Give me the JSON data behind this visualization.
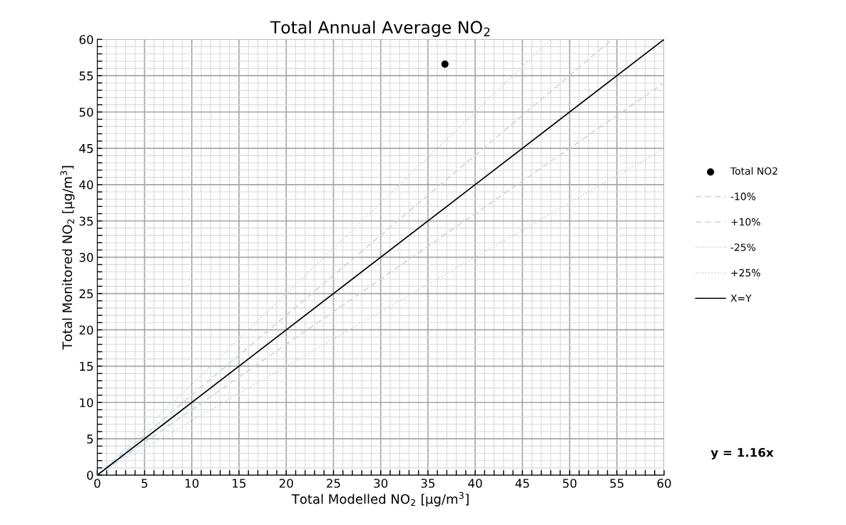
{
  "chart_data": {
    "type": "scatter",
    "title": "Total Annual Average NO$_{2}$",
    "xlabel": "Total Modelled NO$_{2}$ [µg/m$^{3}$]",
    "ylabel": "Total Monitored NO$_{2}$ [µg/m$^{3}$]",
    "xlim": [
      0,
      60
    ],
    "ylim": [
      0,
      60
    ],
    "xticks": [
      0,
      {
        "value": 1,
        "label": null
      },
      {
        "value": 2,
        "label": null
      },
      {
        "value": 3,
        "label": null
      },
      {
        "value": 4,
        "label": null
      },
      5,
      {
        "value": 6,
        "label": null
      },
      {
        "value": 7,
        "label": null
      },
      {
        "value": 8,
        "label": null
      },
      {
        "value": 9,
        "label": null
      },
      10,
      {
        "value": 11,
        "label": null
      },
      {
        "value": 12,
        "label": null
      },
      {
        "value": 13,
        "label": null
      },
      {
        "value": 14,
        "label": null
      },
      15,
      {
        "value": 16,
        "label": null
      },
      {
        "value": 17,
        "label": null
      },
      {
        "value": 18,
        "label": null
      },
      {
        "value": 19,
        "label": null
      },
      20,
      {
        "value": 21,
        "label": null
      },
      {
        "value": 22,
        "label": null
      },
      {
        "value": 23,
        "label": null
      },
      {
        "value": 24,
        "label": null
      },
      25,
      {
        "value": 26,
        "label": null
      },
      {
        "value": 27,
        "label": null
      },
      {
        "value": 28,
        "label": null
      },
      {
        "value": 29,
        "label": null
      },
      30,
      {
        "value": 31,
        "label": null
      },
      {
        "value": 32,
        "label": null
      },
      {
        "value": 33,
        "label": null
      },
      {
        "value": 34,
        "label": null
      },
      35,
      {
        "value": 36,
        "label": null
      },
      {
        "value": 37,
        "label": null
      },
      {
        "value": 38,
        "label": null
      },
      {
        "value": 39,
        "label": null
      },
      40,
      {
        "value": 41,
        "label": null
      },
      {
        "value": 42,
        "label": null
      },
      {
        "value": 43,
        "label": null
      },
      {
        "value": 44,
        "label": null
      },
      45,
      {
        "value": 46,
        "label": null
      },
      {
        "value": 47,
        "label": null
      },
      {
        "value": 48,
        "label": null
      },
      {
        "value": 49,
        "label": null
      },
      50,
      {
        "value": 51,
        "label": null
      },
      {
        "value": 52,
        "label": null
      },
      {
        "value": 53,
        "label": null
      },
      {
        "value": 54,
        "label": null
      },
      55,
      {
        "value": 56,
        "label": null
      },
      {
        "value": 57,
        "label": null
      },
      {
        "value": 58,
        "label": null
      },
      {
        "value": 59,
        "label": null
      },
      60
    ],
    "yticks": [
      0,
      {
        "value": 1,
        "label": null
      },
      {
        "value": 2,
        "label": null
      },
      {
        "value": 3,
        "label": null
      },
      {
        "value": 4,
        "label": null
      },
      5,
      {
        "value": 6,
        "label": null
      },
      {
        "value": 7,
        "label": null
      },
      {
        "value": 8,
        "label": null
      },
      {
        "value": 9,
        "label": null
      },
      10,
      {
        "value": 11,
        "label": null
      },
      {
        "value": 12,
        "label": null
      },
      {
        "value": 13,
        "label": null
      },
      {
        "value": 14,
        "label": null
      },
      15,
      {
        "value": 16,
        "label": null
      },
      {
        "value": 17,
        "label": null
      },
      {
        "value": 18,
        "label": null
      },
      {
        "value": 19,
        "label": null
      },
      20,
      {
        "value": 21,
        "label": null
      },
      {
        "value": 22,
        "label": null
      },
      {
        "value": 23,
        "label": null
      },
      {
        "value": 24,
        "label": null
      },
      25,
      {
        "value": 26,
        "label": null
      },
      {
        "value": 27,
        "label": null
      },
      {
        "value": 28,
        "label": null
      },
      {
        "value": 29,
        "label": null
      },
      30,
      {
        "value": 31,
        "label": null
      },
      {
        "value": 32,
        "label": null
      },
      {
        "value": 33,
        "label": null
      },
      {
        "value": 34,
        "label": null
      },
      35,
      {
        "value": 36,
        "label": null
      },
      {
        "value": 37,
        "label": null
      },
      {
        "value": 38,
        "label": null
      },
      {
        "value": 39,
        "label": null
      },
      40,
      {
        "value": 41,
        "label": null
      },
      {
        "value": 42,
        "label": null
      },
      {
        "value": 43,
        "label": null
      },
      {
        "value": 44,
        "label": null
      },
      45,
      {
        "value": 46,
        "label": null
      },
      {
        "value": 47,
        "label": null
      },
      {
        "value": 48,
        "label": null
      },
      {
        "value": 49,
        "label": null
      },
      50,
      {
        "value": 51,
        "label": null
      },
      {
        "value": 52,
        "label": null
      },
      {
        "value": 53,
        "label": null
      },
      {
        "value": 54,
        "label": null
      },
      55,
      {
        "value": 56,
        "label": null
      },
      {
        "value": 57,
        "label": null
      },
      {
        "value": 58,
        "label": null
      },
      {
        "value": 59,
        "label": null
      },
      60
    ],
    "grid": true,
    "legend": "right",
    "series": [
      {
        "name": "Total NO2",
        "type": "scatter",
        "marker": "circle",
        "color": "#000000",
        "x": [
          36.8
        ],
        "values": [
          56.6
        ]
      },
      {
        "name": "-10%",
        "type": "line",
        "line_style": "dashed",
        "color": "#c9d6ea",
        "x": [
          0,
          60
        ],
        "values": [
          0,
          54
        ]
      },
      {
        "name": "+10%",
        "type": "line",
        "line_style": "dashed",
        "color": "#c9d6ea",
        "x": [
          0,
          54.5
        ],
        "values": [
          0,
          60
        ]
      },
      {
        "name": "-25%",
        "type": "line",
        "line_style": "dotted",
        "color": "#c9d6ea",
        "x": [
          0,
          60
        ],
        "values": [
          0,
          45
        ]
      },
      {
        "name": "+25%",
        "type": "line",
        "line_style": "dotted",
        "color": "#c9d6ea",
        "x": [
          0,
          48
        ],
        "values": [
          0,
          60
        ]
      },
      {
        "name": "X=Y",
        "type": "line",
        "line_style": "solid",
        "color": "#000000",
        "x": [
          0,
          60
        ],
        "values": [
          0,
          60
        ]
      }
    ],
    "annotations": [
      "y = 1.16x"
    ]
  }
}
